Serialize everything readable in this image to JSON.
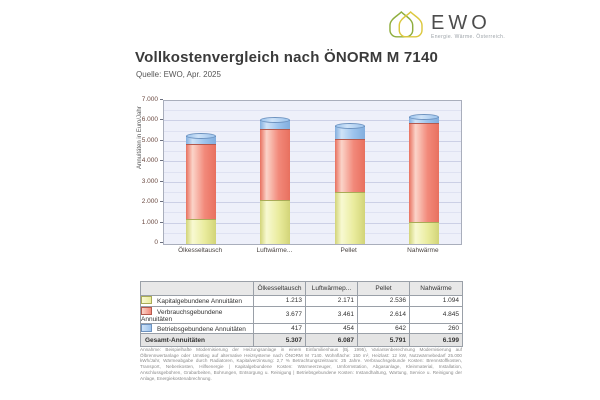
{
  "page": {
    "title": "Vollkostenvergleich nach ÖNORM M 7140",
    "source": "Quelle: EWO, Apr. 2025"
  },
  "logo": {
    "name": "EWO",
    "tagline": "Energie. Wärme. Österreich.",
    "color_green": "#8fae3e",
    "color_yellow": "#dcc83f"
  },
  "chart_data": {
    "type": "bar",
    "stacked": true,
    "title": "Vollkostenvergleich nach ÖNORM M 7140",
    "ylabel": "Annuitäten in Euro/Jahr",
    "ylim": [
      0,
      7000
    ],
    "ytick_step": 1000,
    "ytick_labels": [
      "0",
      "1.000",
      "2.000",
      "3.000",
      "4.000",
      "5.000",
      "6.000",
      "7.000"
    ],
    "grid": true,
    "legend_position": "table-below",
    "categories": [
      "Ölkesseltausch",
      "Luftwärme...",
      "Pellet",
      "Nahwärme"
    ],
    "series": [
      {
        "name": "Kapitalgebundene Annuitäten",
        "values": [
          1213,
          2171,
          2536,
          1094
        ],
        "color": "#eaec9e",
        "color_light": "#f8f9d2",
        "color_dark": "#d2d478",
        "color_border": "#a9ab57"
      },
      {
        "name": "Verbrauchsgebundene Annuitäten",
        "values": [
          3677,
          3461,
          2614,
          4845
        ],
        "color": "#f2897a",
        "color_light": "#fbd4c9",
        "color_dark": "#e8705f",
        "color_border": "#b5594d"
      },
      {
        "name": "Betriebsgebundene Annuitäten",
        "values": [
          417,
          454,
          642,
          260
        ],
        "color": "#9cc3ed",
        "color_light": "#cfe3f8",
        "color_dark": "#82aede",
        "color_border": "#6d92bf"
      }
    ],
    "totals": [
      5307,
      6087,
      5791,
      6199
    ]
  },
  "table": {
    "col_headers": [
      "",
      "Ölkesseltausch",
      "Luftwärmep...",
      "Pellet",
      "Nahwärme"
    ],
    "rows": [
      {
        "label": "Kapitalgebundene Annuitäten",
        "values": [
          "1.213",
          "2.171",
          "2.536",
          "1.094"
        ]
      },
      {
        "label": "Verbrauchsgebundene Annuitäten",
        "values": [
          "3.677",
          "3.461",
          "2.614",
          "4.845"
        ]
      },
      {
        "label": "Betriebsgebundene Annuitäten",
        "values": [
          "417",
          "454",
          "642",
          "260"
        ]
      }
    ],
    "total_row": {
      "label": "Gesamt-Annuitäten",
      "values": [
        "5.307",
        "6.087",
        "5.791",
        "6.199"
      ]
    }
  },
  "footnote": "Annahme: Beispielhafte Modernisierung der Heizungsanlage in einem Einfamilienhaus (Bj. 1995), Variantenberechnung Modernisierung auf Ölbrennwertanlage oder Umstieg auf alternative Heizsysteme nach ÖNORM M 7140. Wohnfläche: 150 m², Heizlast: 12 kW, Nutzwärmebedarf 25.000 kWh/Jahr, Wärmeabgabe durch Radiatoren, Kapitalverzinsung: 2,7 % Betrachtungszeitraum: 25 Jahre. Verbrauchsgebunde Kosten: Brennstoffkosten, Transport, Nebenkosten, Hilfsenergie | Kapitalgebundene Kosten: Wärmeerzeuger, Umformstation, Abgasanlage, Kleinmaterial, Installation, Anschlussgebühren, Grabarbeiten, Bohrungen, Entsorgung u. Reinigung | Betriebsgebundene Kosten: Instandhaltung, Wartung, Service u. Reinigung der Anlage, Energiekostenabrechnung."
}
